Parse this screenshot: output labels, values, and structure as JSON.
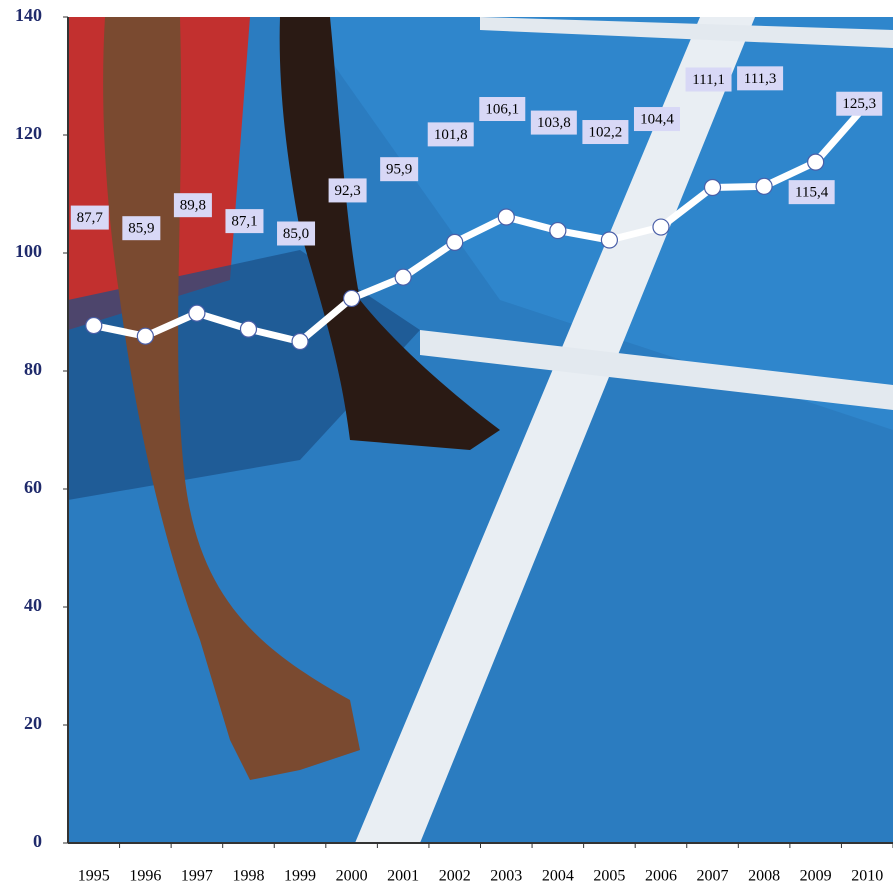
{
  "chart_data": {
    "type": "line",
    "categories": [
      "1995",
      "1996",
      "1997",
      "1998",
      "1999",
      "2000",
      "2001",
      "2002",
      "2003",
      "2004",
      "2005",
      "2006",
      "2007",
      "2008",
      "2009",
      "2010"
    ],
    "values": [
      87.7,
      85.9,
      89.8,
      87.1,
      85.0,
      92.3,
      95.9,
      101.8,
      106.1,
      103.8,
      102.2,
      104.4,
      111.1,
      111.3,
      115.4,
      125.3
    ],
    "value_labels": [
      "87,7",
      "85,9",
      "89,8",
      "87,1",
      "85,0",
      "92,3",
      "95,9",
      "101,8",
      "106,1",
      "103,8",
      "102,2",
      "104,4",
      "111,1",
      "111,3",
      "115,4",
      "125,3"
    ],
    "color": "#ffffff",
    "ylim": [
      0,
      140
    ],
    "yticks": [
      0,
      20,
      40,
      60,
      80,
      100,
      120,
      140
    ]
  }
}
